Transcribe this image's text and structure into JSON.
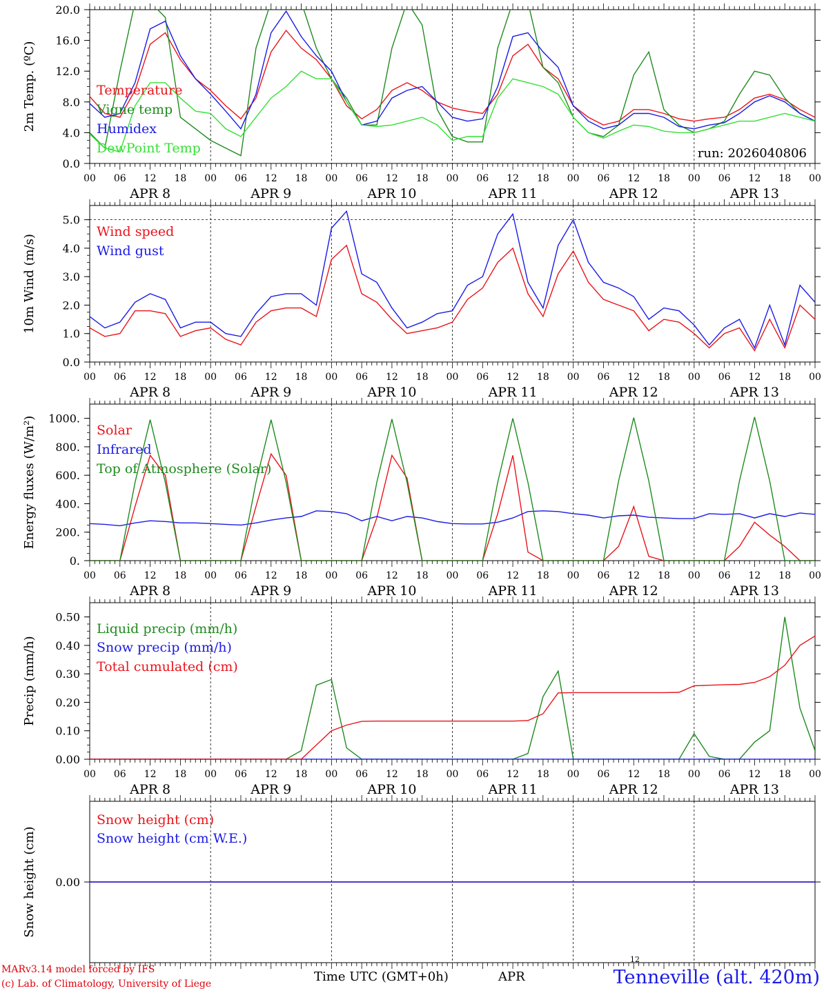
{
  "colors": {
    "red": "#e8141b",
    "green": "#1f8a1f",
    "blue": "#1a1ae6",
    "lightgreen": "#34e034",
    "black": "#000000"
  },
  "time_axis": {
    "hour_labels": [
      "00",
      "06",
      "12",
      "18"
    ],
    "day_labels": [
      "APR  8",
      "APR  9",
      "APR 10",
      "APR 11",
      "APR 12",
      "APR 13"
    ],
    "range_hours": [
      0,
      144
    ]
  },
  "footer": {
    "model_line1": "MARv3.14 model forced by IFS",
    "model_line2": "(c) Lab. of Climatology, University of Liege",
    "xlabel": "Time UTC (GMT+0h)",
    "month": "APR",
    "marker": "12",
    "station": "Tenneville (alt. 420m)"
  },
  "chart_data": [
    {
      "type": "line",
      "ylabel": "2m Temp. (ºC)",
      "ylim": [
        0,
        20
      ],
      "yticks": [
        "0.0",
        "4.0",
        "8.0",
        "12.0",
        "16.0",
        "20.0"
      ],
      "annotation": "run: 2026040806",
      "x_hours": [
        0,
        3,
        6,
        9,
        12,
        15,
        18,
        21,
        24,
        27,
        30,
        33,
        36,
        39,
        42,
        45,
        48,
        51,
        54,
        57,
        60,
        63,
        66,
        69,
        72,
        75,
        78,
        81,
        84,
        87,
        90,
        93,
        96,
        99,
        102,
        105,
        108,
        111,
        114,
        117,
        120,
        123,
        126,
        129,
        132,
        135,
        138,
        141,
        144
      ],
      "series": [
        {
          "name": "Temperature",
          "color": "red",
          "values": [
            8.7,
            6.5,
            6.0,
            9.5,
            15.5,
            17.0,
            13.5,
            11.0,
            9.5,
            7.5,
            5.8,
            8.5,
            14.5,
            17.3,
            15.0,
            13.5,
            11.0,
            7.5,
            5.8,
            7.0,
            9.5,
            10.5,
            9.5,
            8.0,
            7.2,
            6.8,
            6.5,
            9.0,
            14.0,
            15.5,
            12.5,
            11.0,
            7.5,
            6.0,
            5.0,
            5.5,
            7.0,
            7.0,
            6.5,
            5.8,
            5.5,
            5.8,
            6.0,
            7.0,
            8.5,
            9.0,
            8.3,
            7.0,
            6.0
          ]
        },
        {
          "name": "Vigne temp",
          "color": "green",
          "values": [
            4.0,
            2.0,
            12.0,
            21.0,
            21.0,
            19.0,
            6.0,
            4.5,
            3.0,
            2.0,
            1.0,
            15.0,
            21.0,
            21.0,
            21.0,
            15.0,
            11.0,
            8.5,
            5.0,
            5.0,
            15.0,
            21.0,
            18.0,
            7.0,
            3.5,
            2.8,
            2.8,
            15.0,
            21.0,
            21.0,
            12.5,
            10.5,
            6.0,
            4.0,
            3.5,
            5.0,
            11.5,
            14.5,
            7.0,
            5.0,
            4.0,
            4.5,
            5.5,
            9.0,
            12.0,
            11.5,
            8.5,
            6.5,
            5.5
          ]
        },
        {
          "name": "Humidex",
          "color": "blue",
          "values": [
            7.8,
            6.0,
            6.5,
            10.5,
            17.5,
            18.5,
            14.0,
            11.0,
            9.0,
            6.8,
            4.5,
            9.0,
            17.0,
            19.8,
            16.5,
            14.0,
            12.0,
            8.0,
            5.0,
            5.5,
            8.5,
            9.5,
            10.0,
            8.0,
            6.0,
            5.5,
            5.8,
            10.0,
            16.5,
            17.0,
            14.5,
            12.5,
            7.5,
            5.5,
            4.5,
            5.0,
            6.5,
            6.5,
            6.0,
            4.8,
            4.5,
            5.0,
            5.3,
            6.5,
            8.0,
            8.8,
            8.0,
            6.5,
            5.5
          ]
        },
        {
          "name": "DewPoint Temp",
          "color": "lightgreen",
          "values": [
            3.8,
            2.0,
            1.5,
            7.5,
            10.5,
            10.5,
            8.5,
            6.8,
            6.5,
            4.5,
            3.5,
            6.0,
            8.5,
            10.0,
            12.0,
            11.0,
            11.0,
            8.0,
            5.0,
            4.8,
            5.0,
            5.5,
            6.0,
            5.0,
            3.0,
            3.5,
            3.5,
            8.5,
            11.0,
            10.5,
            10.0,
            9.0,
            6.0,
            4.0,
            3.3,
            4.2,
            5.0,
            4.8,
            4.2,
            4.0,
            4.0,
            4.5,
            5.0,
            5.5,
            5.5,
            6.0,
            6.5,
            6.0,
            5.5
          ]
        }
      ]
    },
    {
      "type": "line",
      "ylabel": "10m Wind (m/s)",
      "ylim": [
        0,
        5.5
      ],
      "yticks": [
        "0.0",
        "1.0",
        "2.0",
        "3.0",
        "4.0",
        "5.0"
      ],
      "reference_line": 5.0,
      "x_hours": [
        0,
        3,
        6,
        9,
        12,
        15,
        18,
        21,
        24,
        27,
        30,
        33,
        36,
        39,
        42,
        45,
        48,
        51,
        54,
        57,
        60,
        63,
        66,
        69,
        72,
        75,
        78,
        81,
        84,
        87,
        90,
        93,
        96,
        99,
        102,
        105,
        108,
        111,
        114,
        117,
        120,
        123,
        126,
        129,
        132,
        135,
        138,
        141,
        144
      ],
      "series": [
        {
          "name": "Wind speed",
          "color": "red",
          "values": [
            1.2,
            0.9,
            1.0,
            1.8,
            1.8,
            1.7,
            0.9,
            1.1,
            1.2,
            0.8,
            0.6,
            1.4,
            1.8,
            1.9,
            1.9,
            1.6,
            3.6,
            4.1,
            2.4,
            2.1,
            1.5,
            1.0,
            1.1,
            1.2,
            1.4,
            2.2,
            2.6,
            3.5,
            4.0,
            2.4,
            1.6,
            3.1,
            3.9,
            2.8,
            2.2,
            2.0,
            1.8,
            1.1,
            1.5,
            1.4,
            1.0,
            0.5,
            1.0,
            1.2,
            0.4,
            1.5,
            0.5,
            2.0,
            1.5
          ]
        },
        {
          "name": "Wind gust",
          "color": "blue",
          "values": [
            1.6,
            1.2,
            1.4,
            2.1,
            2.4,
            2.2,
            1.2,
            1.4,
            1.4,
            1.0,
            0.9,
            1.7,
            2.3,
            2.4,
            2.4,
            2.0,
            4.7,
            5.3,
            3.1,
            2.8,
            1.9,
            1.2,
            1.4,
            1.7,
            1.8,
            2.7,
            3.0,
            4.5,
            5.2,
            2.8,
            1.9,
            4.1,
            5.0,
            3.5,
            2.8,
            2.6,
            2.3,
            1.5,
            1.9,
            1.8,
            1.3,
            0.6,
            1.2,
            1.5,
            0.5,
            2.0,
            0.6,
            2.7,
            2.1
          ]
        }
      ]
    },
    {
      "type": "line",
      "ylabel": "Energy fluxes (W/m²)",
      "ylim": [
        0,
        1100
      ],
      "yticks": [
        "0.",
        "200.",
        "400.",
        "600.",
        "800.",
        "1000."
      ],
      "x_hours": [
        0,
        3,
        6,
        9,
        12,
        15,
        18,
        21,
        24,
        27,
        30,
        33,
        36,
        39,
        42,
        45,
        48,
        51,
        54,
        57,
        60,
        63,
        66,
        69,
        72,
        75,
        78,
        81,
        84,
        87,
        90,
        93,
        96,
        99,
        102,
        105,
        108,
        111,
        114,
        117,
        120,
        123,
        126,
        129,
        132,
        135,
        138,
        141,
        144
      ],
      "series": [
        {
          "name": "Solar",
          "color": "red",
          "values": [
            0,
            0,
            0,
            380,
            740,
            600,
            0,
            0,
            0,
            0,
            0,
            380,
            750,
            600,
            0,
            0,
            0,
            0,
            0,
            300,
            740,
            580,
            0,
            0,
            0,
            0,
            0,
            330,
            740,
            60,
            0,
            0,
            0,
            0,
            0,
            100,
            380,
            30,
            0,
            0,
            0,
            0,
            0,
            100,
            270,
            180,
            100,
            0,
            0
          ]
        },
        {
          "name": "Infrared",
          "color": "blue",
          "values": [
            260,
            255,
            245,
            265,
            280,
            275,
            265,
            265,
            260,
            255,
            250,
            265,
            285,
            300,
            310,
            350,
            345,
            330,
            280,
            310,
            280,
            310,
            300,
            275,
            260,
            258,
            258,
            270,
            300,
            345,
            350,
            345,
            330,
            320,
            300,
            315,
            320,
            305,
            300,
            295,
            295,
            330,
            325,
            330,
            300,
            330,
            310,
            335,
            325
          ]
        },
        {
          "name": "Top of Atmosphere (Solar)",
          "color": "green",
          "values": [
            0,
            0,
            0,
            550,
            990,
            550,
            0,
            0,
            0,
            0,
            0,
            550,
            990,
            550,
            0,
            0,
            0,
            0,
            0,
            550,
            995,
            550,
            0,
            0,
            0,
            0,
            0,
            550,
            1000,
            550,
            0,
            0,
            0,
            0,
            0,
            560,
            1005,
            560,
            0,
            0,
            0,
            0,
            0,
            560,
            1010,
            560,
            0,
            0,
            0
          ]
        }
      ]
    },
    {
      "type": "line",
      "ylabel": "Precip (mm/h)",
      "ylim": [
        0,
        0.55
      ],
      "yticks": [
        "0.00",
        "0.10",
        "0.20",
        "0.30",
        "0.40",
        "0.50"
      ],
      "x_hours": [
        0,
        3,
        6,
        9,
        12,
        15,
        18,
        21,
        24,
        27,
        30,
        33,
        36,
        39,
        42,
        45,
        48,
        51,
        54,
        57,
        60,
        63,
        66,
        69,
        72,
        75,
        78,
        81,
        84,
        87,
        90,
        93,
        96,
        99,
        102,
        105,
        108,
        111,
        114,
        117,
        120,
        123,
        126,
        129,
        132,
        135,
        138,
        141,
        144
      ],
      "series": [
        {
          "name": "Liquid precip (mm/h)",
          "color": "green",
          "values": [
            0,
            0,
            0,
            0,
            0,
            0,
            0,
            0,
            0,
            0,
            0,
            0,
            0,
            0,
            0.03,
            0.26,
            0.28,
            0.04,
            0,
            0,
            0,
            0,
            0,
            0,
            0,
            0,
            0,
            0,
            0,
            0.02,
            0.22,
            0.31,
            0,
            0,
            0,
            0,
            0,
            0,
            0,
            0,
            0.09,
            0.01,
            0,
            0,
            0.06,
            0.1,
            0.5,
            0.18,
            0.03
          ]
        },
        {
          "name": "Snow precip (mm/h)",
          "color": "blue",
          "values": [
            0,
            0,
            0,
            0,
            0,
            0,
            0,
            0,
            0,
            0,
            0,
            0,
            0,
            0,
            0,
            0,
            0,
            0,
            0,
            0,
            0,
            0,
            0,
            0,
            0,
            0,
            0,
            0,
            0,
            0,
            0,
            0,
            0,
            0,
            0,
            0,
            0,
            0,
            0,
            0,
            0,
            0,
            0,
            0,
            0,
            0,
            0,
            0,
            0
          ]
        },
        {
          "name": "Total cumulated (cm)",
          "color": "red",
          "values": [
            0,
            0,
            0,
            0,
            0,
            0,
            0,
            0,
            0,
            0,
            0,
            0,
            0,
            0,
            0,
            0.05,
            0.1,
            0.12,
            0.133,
            0.134,
            0.134,
            0.134,
            0.134,
            0.134,
            0.134,
            0.134,
            0.134,
            0.134,
            0.134,
            0.136,
            0.16,
            0.233,
            0.234,
            0.234,
            0.234,
            0.234,
            0.234,
            0.234,
            0.234,
            0.235,
            0.258,
            0.26,
            0.262,
            0.263,
            0.27,
            0.29,
            0.33,
            0.4,
            0.433
          ]
        }
      ]
    },
    {
      "type": "line",
      "ylabel": "Snow height (cm)",
      "ylim": [
        -1,
        1
      ],
      "yticks": [
        "0.00"
      ],
      "x_hours": [
        0,
        144
      ],
      "series": [
        {
          "name": "Snow height (cm)",
          "color": "red",
          "values": [
            0,
            0
          ]
        },
        {
          "name": "Snow height (cm W.E.)",
          "color": "blue",
          "values": [
            0,
            0
          ]
        }
      ]
    }
  ]
}
